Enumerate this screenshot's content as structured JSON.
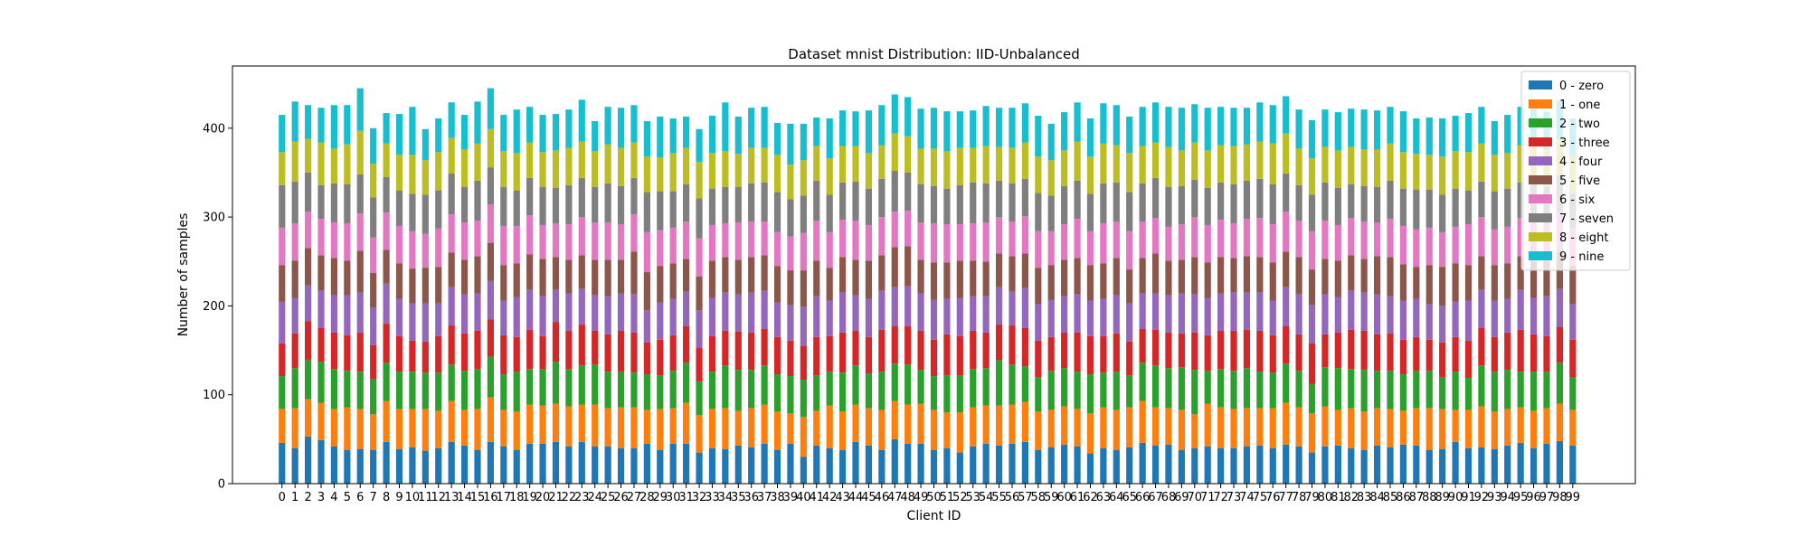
{
  "chart_data": {
    "type": "bar",
    "stacked": true,
    "title": "Dataset mnist Distribution: IID-Unbalanced",
    "xlabel": "Client ID",
    "ylabel": "Number of samples",
    "ylim": [
      0,
      470
    ],
    "yticks": [
      0,
      100,
      200,
      300,
      400
    ],
    "grid": false,
    "legend_position": "top-right",
    "colors": [
      "#1f77b4",
      "#ff7f0e",
      "#2ca02c",
      "#d62728",
      "#9467bd",
      "#8c564b",
      "#e377c2",
      "#7f7f7f",
      "#bcbd22",
      "#17becf"
    ],
    "categories": [
      "0",
      "1",
      "2",
      "3",
      "4",
      "5",
      "6",
      "7",
      "8",
      "9",
      "10",
      "11",
      "12",
      "13",
      "14",
      "15",
      "16",
      "17",
      "18",
      "19",
      "20",
      "21",
      "22",
      "23",
      "24",
      "25",
      "26",
      "27",
      "28",
      "29",
      "30",
      "31",
      "32",
      "33",
      "34",
      "35",
      "36",
      "37",
      "38",
      "39",
      "40",
      "41",
      "42",
      "43",
      "44",
      "45",
      "46",
      "47",
      "48",
      "49",
      "50",
      "51",
      "52",
      "53",
      "54",
      "55",
      "56",
      "57",
      "58",
      "59",
      "60",
      "61",
      "62",
      "63",
      "64",
      "65",
      "66",
      "67",
      "68",
      "69",
      "70",
      "71",
      "72",
      "73",
      "74",
      "75",
      "76",
      "77",
      "78",
      "79",
      "80",
      "81",
      "82",
      "83",
      "84",
      "85",
      "86",
      "87",
      "88",
      "89",
      "90",
      "91",
      "92",
      "93",
      "94",
      "95",
      "96",
      "97",
      "98",
      "99"
    ],
    "series": [
      {
        "name": "0 - zero",
        "values": [
          46,
          40,
          53,
          49,
          42,
          38,
          39,
          38,
          47,
          39,
          41,
          37,
          40,
          47,
          43,
          38,
          47,
          42,
          38,
          45,
          45,
          47,
          42,
          47,
          42,
          42,
          40,
          40,
          45,
          38,
          45,
          45,
          35,
          40,
          39,
          43,
          41,
          45,
          38,
          45,
          30,
          43,
          40,
          38,
          47,
          43,
          38,
          50,
          45,
          45,
          38,
          40,
          35,
          42,
          45,
          43,
          45,
          47,
          38,
          41,
          44,
          42,
          34,
          40,
          38,
          41,
          46,
          43,
          44,
          38,
          40,
          42,
          40,
          40,
          42,
          43,
          40,
          44,
          42,
          35,
          42,
          43,
          40,
          38,
          43,
          41,
          44,
          43,
          38,
          39,
          47,
          40,
          41,
          39,
          43,
          46,
          40,
          45,
          48,
          43
        ]
      },
      {
        "name": "1 - one",
        "values": [
          38,
          45,
          42,
          42,
          42,
          48,
          45,
          40,
          46,
          45,
          43,
          47,
          42,
          46,
          40,
          46,
          50,
          41,
          43,
          44,
          43,
          43,
          45,
          42,
          47,
          43,
          46,
          46,
          38,
          46,
          40,
          46,
          42,
          44,
          46,
          39,
          44,
          44,
          43,
          34,
          45,
          39,
          48,
          43,
          42,
          42,
          45,
          43,
          44,
          45,
          45,
          40,
          45,
          44,
          43,
          45,
          44,
          45,
          43,
          42,
          43,
          42,
          45,
          46,
          45,
          45,
          47,
          43,
          41,
          45,
          38,
          48,
          46,
          44,
          43,
          42,
          45,
          47,
          44,
          44,
          45,
          40,
          45,
          43,
          42,
          43,
          38,
          42,
          47,
          45,
          36,
          43,
          46,
          42,
          41,
          40,
          42,
          40,
          42,
          40
        ]
      },
      {
        "name": "2 - two",
        "values": [
          37,
          45,
          44,
          46,
          45,
          41,
          42,
          40,
          43,
          42,
          42,
          41,
          43,
          41,
          44,
          45,
          46,
          40,
          45,
          40,
          41,
          47,
          42,
          44,
          45,
          41,
          40,
          39,
          40,
          38,
          42,
          45,
          38,
          42,
          48,
          46,
          43,
          44,
          42,
          42,
          42,
          40,
          38,
          44,
          44,
          39,
          43,
          42,
          45,
          38,
          38,
          42,
          42,
          43,
          42,
          51,
          45,
          40,
          39,
          44,
          43,
          42,
          44,
          39,
          43,
          36,
          43,
          47,
          45,
          48,
          50,
          37,
          43,
          43,
          45,
          41,
          40,
          44,
          41,
          33,
          44,
          47,
          44,
          47,
          42,
          43,
          41,
          42,
          42,
          36,
          43,
          36,
          46,
          45,
          44,
          40,
          44,
          41,
          46,
          37
        ]
      },
      {
        "name": "3 - three",
        "values": [
          37,
          39,
          44,
          38,
          41,
          40,
          44,
          38,
          44,
          40,
          35,
          35,
          41,
          44,
          42,
          43,
          42,
          44,
          39,
          44,
          37,
          45,
          43,
          46,
          38,
          42,
          46,
          45,
          36,
          40,
          40,
          41,
          38,
          40,
          39,
          43,
          42,
          41,
          42,
          40,
          38,
          43,
          40,
          45,
          39,
          41,
          47,
          42,
          43,
          44,
          41,
          46,
          44,
          43,
          40,
          40,
          44,
          43,
          41,
          38,
          40,
          44,
          43,
          41,
          43,
          38,
          38,
          40,
          40,
          38,
          42,
          40,
          43,
          45,
          43,
          46,
          42,
          42,
          41,
          46,
          37,
          40,
          44,
          44,
          41,
          42,
          39,
          38,
          35,
          39,
          39,
          42,
          42,
          39,
          42,
          47,
          42,
          40,
          40,
          42
        ]
      },
      {
        "name": "4 - four",
        "values": [
          47,
          40,
          40,
          42,
          42,
          45,
          45,
          42,
          45,
          42,
          42,
          43,
          37,
          43,
          44,
          42,
          43,
          39,
          45,
          45,
          45,
          36,
          42,
          40,
          40,
          43,
          42,
          43,
          36,
          42,
          41,
          39,
          42,
          43,
          43,
          42,
          45,
          43,
          39,
          40,
          44,
          46,
          40,
          45,
          40,
          43,
          44,
          44,
          45,
          42,
          45,
          40,
          43,
          39,
          41,
          42,
          38,
          45,
          41,
          42,
          41,
          43,
          40,
          42,
          43,
          43,
          40,
          41,
          42,
          45,
          43,
          42,
          42,
          43,
          42,
          43,
          39,
          44,
          45,
          43,
          45,
          40,
          44,
          43,
          45,
          42,
          44,
          43,
          40,
          41,
          40,
          45,
          43,
          41,
          38,
          45,
          41,
          45,
          43,
          40
        ]
      },
      {
        "name": "5 - five",
        "values": [
          41,
          42,
          42,
          40,
          42,
          39,
          47,
          39,
          38,
          40,
          39,
          40,
          41,
          39,
          39,
          42,
          43,
          40,
          38,
          40,
          42,
          37,
          38,
          38,
          40,
          41,
          38,
          48,
          43,
          41,
          40,
          37,
          38,
          42,
          40,
          39,
          40,
          40,
          41,
          39,
          41,
          40,
          37,
          40,
          40,
          43,
          40,
          45,
          45,
          38,
          42,
          41,
          42,
          40,
          39,
          38,
          40,
          39,
          41,
          39,
          41,
          41,
          40,
          40,
          42,
          38,
          40,
          45,
          39,
          38,
          42,
          40,
          41,
          39,
          41,
          40,
          43,
          40,
          42,
          40,
          40,
          41,
          40,
          38,
          43,
          44,
          41,
          36,
          44,
          44,
          43,
          40,
          38,
          40,
          40,
          38,
          42,
          40,
          42,
          43
        ]
      },
      {
        "name": "6 - six",
        "values": [
          42,
          42,
          41,
          41,
          40,
          42,
          42,
          40,
          42,
          42,
          42,
          38,
          43,
          43,
          42,
          40,
          43,
          44,
          42,
          44,
          38,
          38,
          40,
          43,
          42,
          42,
          40,
          42,
          45,
          40,
          40,
          42,
          43,
          40,
          38,
          42,
          40,
          38,
          38,
          38,
          42,
          45,
          40,
          42,
          44,
          40,
          43,
          40,
          40,
          42,
          44,
          43,
          41,
          42,
          44,
          41,
          39,
          42,
          41,
          38,
          40,
          44,
          38,
          45,
          41,
          43,
          41,
          40,
          38,
          40,
          45,
          42,
          42,
          39,
          42,
          44,
          43,
          45,
          41,
          43,
          43,
          40,
          42,
          42,
          38,
          43,
          43,
          42,
          42,
          39,
          41,
          46,
          44,
          40,
          41,
          43,
          44,
          42,
          44,
          42
        ]
      },
      {
        "name": "7 - seven",
        "values": [
          48,
          47,
          44,
          38,
          44,
          44,
          44,
          45,
          40,
          40,
          42,
          44,
          43,
          46,
          40,
          45,
          42,
          44,
          40,
          42,
          43,
          40,
          44,
          44,
          40,
          44,
          43,
          41,
          45,
          44,
          41,
          42,
          45,
          41,
          41,
          40,
          43,
          44,
          45,
          42,
          42,
          45,
          42,
          42,
          44,
          41,
          43,
          46,
          43,
          43,
          42,
          40,
          44,
          46,
          44,
          41,
          43,
          42,
          43,
          40,
          43,
          43,
          42,
          45,
          44,
          44,
          43,
          45,
          45,
          43,
          42,
          42,
          42,
          44,
          43,
          44,
          45,
          43,
          40,
          41,
          43,
          42,
          38,
          40,
          40,
          43,
          42,
          45,
          43,
          42,
          43,
          38,
          40,
          43,
          43,
          40,
          45,
          42,
          42,
          40
        ]
      },
      {
        "name": "8 - eight",
        "values": [
          37,
          45,
          38,
          48,
          39,
          45,
          49,
          38,
          38,
          40,
          44,
          39,
          43,
          40,
          42,
          42,
          43,
          40,
          42,
          40,
          39,
          42,
          42,
          41,
          40,
          44,
          43,
          40,
          40,
          38,
          43,
          41,
          41,
          40,
          40,
          37,
          40,
          39,
          42,
          39,
          40,
          39,
          41,
          41,
          40,
          40,
          38,
          42,
          41,
          40,
          42,
          42,
          42,
          39,
          42,
          38,
          40,
          41,
          41,
          40,
          40,
          44,
          42,
          45,
          42,
          44,
          42,
          40,
          45,
          40,
          42,
          42,
          42,
          43,
          41,
          42,
          46,
          45,
          41,
          41,
          40,
          42,
          42,
          41,
          42,
          42,
          41,
          40,
          39,
          43,
          42,
          43,
          43,
          41,
          40,
          42,
          42,
          41,
          40,
          42
        ]
      },
      {
        "name": "9 - nine",
        "values": [
          42,
          45,
          38,
          39,
          49,
          44,
          48,
          40,
          34,
          46,
          54,
          35,
          38,
          40,
          39,
          47,
          46,
          41,
          49,
          40,
          42,
          41,
          43,
          47,
          34,
          42,
          45,
          42,
          40,
          46,
          39,
          35,
          37,
          42,
          55,
          42,
          45,
          46,
          36,
          46,
          41,
          32,
          45,
          40,
          39,
          48,
          45,
          44,
          44,
          45,
          46,
          45,
          41,
          42,
          45,
          44,
          45,
          44,
          46,
          41,
          43,
          44,
          43,
          45,
          45,
          41,
          44,
          45,
          45,
          48,
          43,
          48,
          43,
          43,
          41,
          44,
          43,
          42,
          44,
          43,
          42,
          43,
          43,
          45,
          44,
          41,
          46,
          40,
          42,
          43,
          40,
          44,
          41,
          38,
          43,
          43,
          40,
          43,
          44,
          42
        ]
      }
    ]
  }
}
